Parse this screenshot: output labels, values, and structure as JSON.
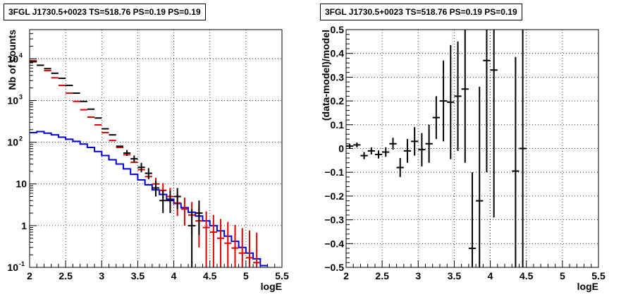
{
  "chart_data": [
    {
      "type": "histogram",
      "title": "3FGL J1730.5+0023 TS=518.76 PS=0.19 PS=0.19",
      "xlabel": "logE",
      "ylabel": "Nb of counts",
      "xlim": [
        2,
        5.5
      ],
      "ylim": [
        0.1,
        50000
      ],
      "yscale": "log",
      "grid": true,
      "x_ticks": [
        "2",
        "2.5",
        "3",
        "3.5",
        "4",
        "4.5",
        "5",
        "5.5"
      ],
      "y_ticks": [
        {
          "value": 0.1,
          "label": "10",
          "exp": "-1"
        },
        {
          "value": 1,
          "label": "1",
          "exp": ""
        },
        {
          "value": 10,
          "label": "10",
          "exp": ""
        },
        {
          "value": 100,
          "label": "10",
          "exp": "2"
        },
        {
          "value": 1000,
          "label": "10",
          "exp": "3"
        },
        {
          "value": 10000,
          "label": "10",
          "exp": "4"
        }
      ],
      "bin_width": 0.1,
      "series": [
        {
          "kind": "data",
          "color": "#000000",
          "x": [
            2.05,
            2.15,
            2.25,
            2.35,
            2.45,
            2.55,
            2.65,
            2.75,
            2.85,
            2.95,
            3.05,
            3.15,
            3.25,
            3.35,
            3.45,
            3.55,
            3.65,
            3.75,
            3.85,
            3.95,
            4.05,
            4.25,
            4.35
          ],
          "y": [
            8500,
            7000,
            5800,
            4500,
            3400,
            2300,
            1500,
            950,
            620,
            380,
            210,
            150,
            80,
            55,
            40,
            25,
            18,
            8,
            4,
            4,
            5,
            1,
            2
          ],
          "err_lo": [
            0,
            0,
            0,
            0,
            0,
            0,
            0,
            0,
            0,
            0,
            0,
            0,
            0,
            8,
            7,
            6,
            5,
            3,
            2,
            2,
            2.5,
            0.9,
            1.4
          ],
          "err_hi": [
            0,
            0,
            0,
            0,
            0,
            0,
            0,
            0,
            0,
            0,
            0,
            0,
            0,
            10,
            8,
            7,
            6,
            4,
            3,
            3,
            3,
            1.5,
            2
          ]
        },
        {
          "kind": "model",
          "color": "#dd0000",
          "x": [
            2.05,
            2.15,
            2.25,
            2.35,
            2.45,
            2.55,
            2.65,
            2.75,
            2.85,
            2.95,
            3.05,
            3.15,
            3.25,
            3.35,
            3.45,
            3.55,
            3.65,
            3.75,
            3.85,
            3.95,
            4.05,
            4.15,
            4.25,
            4.35,
            4.45,
            4.55,
            4.65,
            4.75,
            4.85,
            4.95,
            5.05,
            5.15
          ],
          "y": [
            9000,
            7000,
            5200,
            3500,
            2300,
            1500,
            950,
            600,
            400,
            260,
            170,
            110,
            75,
            50,
            33,
            22,
            15,
            10,
            7,
            5,
            3.5,
            2.5,
            1.8,
            1.3,
            0.9,
            0.7,
            0.5,
            0.38,
            0.29,
            0.22,
            0.17,
            0.13
          ],
          "err_lo": [
            0,
            0,
            0,
            0,
            0,
            0,
            0,
            0,
            0,
            0,
            0,
            0,
            0,
            0,
            0,
            0,
            0,
            3,
            2.6,
            2.2,
            1.8,
            1.5,
            1.2,
            1.0,
            0.8,
            0.6,
            0.45,
            0.34,
            0.26,
            0.2,
            0.16,
            0.12
          ],
          "err_hi": [
            0,
            0,
            0,
            0,
            0,
            0,
            0,
            0,
            0,
            0,
            0,
            0,
            0,
            0,
            0,
            0,
            0,
            4,
            3.5,
            3,
            2.6,
            2.2,
            1.9,
            1.6,
            1.3,
            1.1,
            0.95,
            0.85,
            0.75,
            0.65,
            0.6,
            0.55
          ]
        },
        {
          "kind": "histogram",
          "color": "#0000dd",
          "edges": [
            2.0,
            2.1,
            2.2,
            2.3,
            2.4,
            2.5,
            2.6,
            2.7,
            2.8,
            2.9,
            3.0,
            3.1,
            3.2,
            3.3,
            3.4,
            3.5,
            3.6,
            3.7,
            3.8,
            3.9,
            4.0,
            4.1,
            4.2,
            4.3,
            4.4,
            4.5,
            4.6,
            4.7,
            4.8,
            4.9,
            5.0,
            5.1,
            5.2,
            5.3
          ],
          "values": [
            170,
            180,
            165,
            150,
            132,
            118,
            105,
            90,
            75,
            60,
            48,
            38,
            30,
            23,
            17,
            12.5,
            9.5,
            7.2,
            5.6,
            4.3,
            3.4,
            2.7,
            2.1,
            1.7,
            1.3,
            1.0,
            0.75,
            0.56,
            0.42,
            0.3,
            0.22,
            0.16,
            0.11
          ]
        }
      ]
    },
    {
      "type": "scatter",
      "title": "3FGL J1730.5+0023 TS=518.76 PS=0.19 PS=0.19",
      "xlabel": "logE",
      "ylabel": "(data-model)/model",
      "xlim": [
        2,
        5.5
      ],
      "ylim": [
        -0.5,
        0.5
      ],
      "grid": true,
      "x_ticks": [
        "2",
        "2.5",
        "3",
        "3.5",
        "4",
        "4.5",
        "5",
        "5.5"
      ],
      "y_ticks": [
        "-0.5",
        "-0.4",
        "-0.3",
        "-0.2",
        "-0.1",
        "0",
        "0.1",
        "0.2",
        "0.3",
        "0.4",
        "0.5"
      ],
      "series": [
        {
          "color": "#000000",
          "x": [
            2.05,
            2.15,
            2.25,
            2.35,
            2.45,
            2.55,
            2.65,
            2.75,
            2.85,
            2.95,
            3.05,
            3.15,
            3.25,
            3.35,
            3.45,
            3.55,
            3.65,
            3.75,
            3.85,
            3.95,
            4.05,
            4.35,
            4.45
          ],
          "y": [
            0.01,
            0.015,
            -0.03,
            -0.01,
            -0.025,
            -0.015,
            0.02,
            -0.08,
            -0.01,
            0.03,
            -0.005,
            0.02,
            0.13,
            0.2,
            0.195,
            0.22,
            0.25,
            -0.42,
            -0.22,
            0.37,
            0.33,
            -0.095,
            0.0
          ],
          "err": [
            0.01,
            0.01,
            0.015,
            0.015,
            0.017,
            0.02,
            0.025,
            0.04,
            0.05,
            0.06,
            0.07,
            0.08,
            0.09,
            0.17,
            0.24,
            0.23,
            0.31,
            0.32,
            0.48,
            0.47,
            0.62,
            0.48,
            0.6
          ]
        }
      ]
    }
  ]
}
